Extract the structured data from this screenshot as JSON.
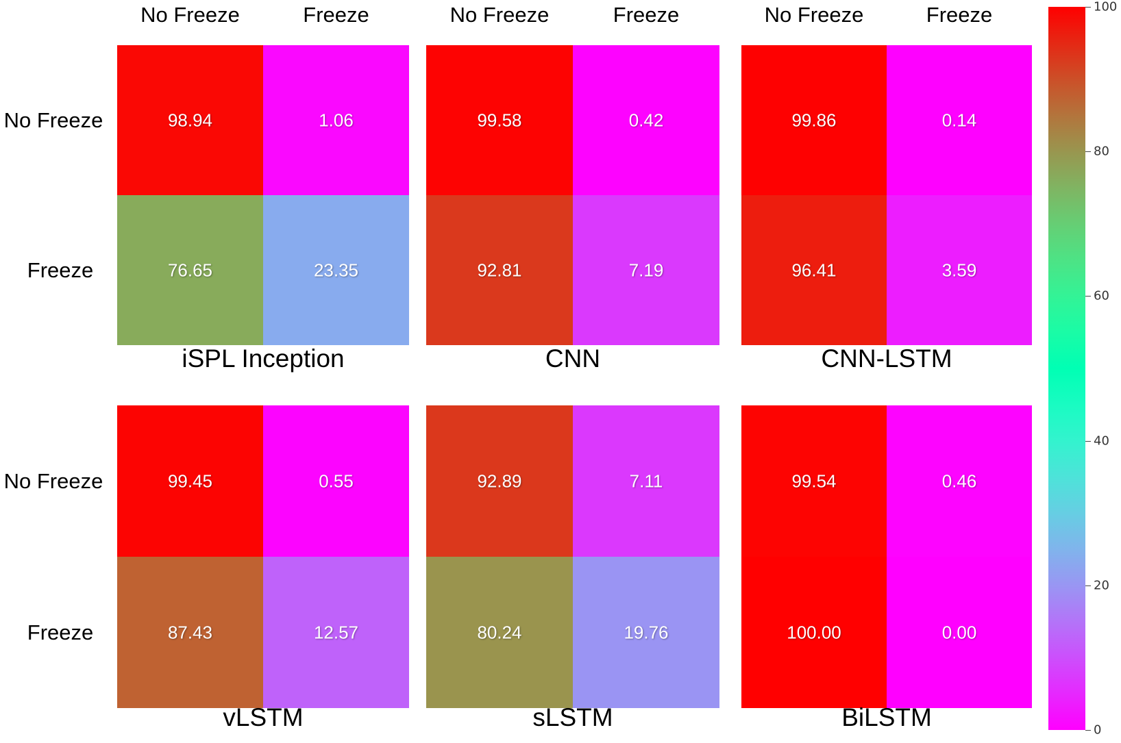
{
  "chart_data": [
    {
      "type": "heatmap",
      "title": "iSPL Inception",
      "x_labels": [
        "No Freeze",
        "Freeze"
      ],
      "y_labels": [
        "No Freeze",
        "Freeze"
      ],
      "values": [
        [
          98.94,
          1.06
        ],
        [
          76.65,
          23.35
        ]
      ]
    },
    {
      "type": "heatmap",
      "title": "CNN",
      "x_labels": [
        "No Freeze",
        "Freeze"
      ],
      "y_labels": [
        "No Freeze",
        "Freeze"
      ],
      "values": [
        [
          99.58,
          0.42
        ],
        [
          92.81,
          7.19
        ]
      ]
    },
    {
      "type": "heatmap",
      "title": "CNN-LSTM",
      "x_labels": [
        "No Freeze",
        "Freeze"
      ],
      "y_labels": [
        "No Freeze",
        "Freeze"
      ],
      "values": [
        [
          99.86,
          0.14
        ],
        [
          96.41,
          3.59
        ]
      ]
    },
    {
      "type": "heatmap",
      "title": "vLSTM",
      "x_labels": [
        "No Freeze",
        "Freeze"
      ],
      "y_labels": [
        "No Freeze",
        "Freeze"
      ],
      "values": [
        [
          99.45,
          0.55
        ],
        [
          87.43,
          12.57
        ]
      ]
    },
    {
      "type": "heatmap",
      "title": "sLSTM",
      "x_labels": [
        "No Freeze",
        "Freeze"
      ],
      "y_labels": [
        "No Freeze",
        "Freeze"
      ],
      "values": [
        [
          92.89,
          7.11
        ],
        [
          80.24,
          19.76
        ]
      ]
    },
    {
      "type": "heatmap",
      "title": "BiLSTM",
      "x_labels": [
        "No Freeze",
        "Freeze"
      ],
      "y_labels": [
        "No Freeze",
        "Freeze"
      ],
      "values": [
        [
          99.54,
          0.46
        ],
        [
          100.0,
          0.0
        ]
      ]
    }
  ],
  "colorbar": {
    "colormap": "rainbow",
    "range": [
      0,
      100
    ],
    "ticks": [
      "0",
      "20",
      "40",
      "60",
      "80",
      "100"
    ]
  }
}
